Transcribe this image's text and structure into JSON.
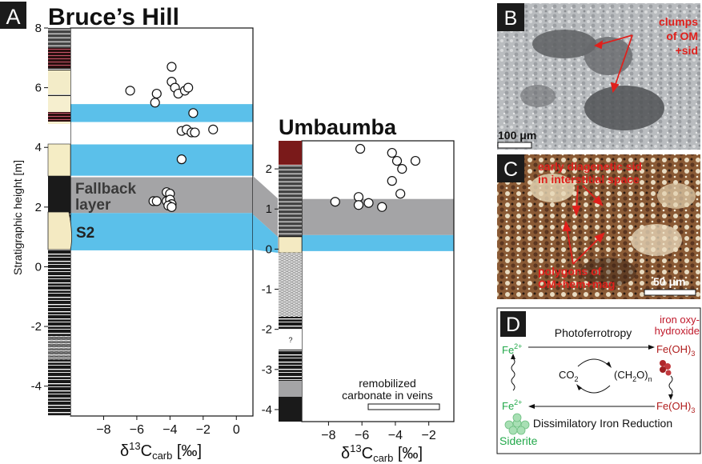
{
  "panels": {
    "A": {
      "letter": "A",
      "bruces_title": "Bruce’s Hill",
      "umbaumba_title": "Umbaumba",
      "ylabel": "Stratigraphic height [m]",
      "xlabel_main": "δ",
      "xlabel_sup": "13",
      "xlabel_c": "C",
      "xlabel_sub": "carb",
      "xlabel_unit": " [‰]",
      "fallback_label_1": "Fallback",
      "fallback_label_2": "layer",
      "s2_label": "S2",
      "question_mark": "?",
      "legend_line1": "remobilized",
      "legend_line2": "carbonate in veins"
    },
    "B": {
      "letter": "B",
      "annotation_1": "clumps",
      "annotation_2": "of OM",
      "annotation_3": "+sid",
      "scale": "100 μm"
    },
    "C": {
      "letter": "C",
      "annotation_top_1": "early diagenetic sid",
      "annotation_top_2": "in interstitial space",
      "annotation_bottom_1": "polygons of",
      "annotation_bottom_2": "OM+hem+mag",
      "scale": "50 μm"
    },
    "D": {
      "letter": "D",
      "top_label": "Photoferrotropy",
      "bottom_label": "Dissimilatory Iron Reduction",
      "fe2_top": "Fe",
      "fe2_top_sup": "2+",
      "fe2_bottom": "Fe",
      "fe2_bottom_sup": "2+",
      "feoh3_top": "Fe(OH)",
      "feoh3_top_sub": "3",
      "feoh3_bottom": "Fe(OH)",
      "feoh3_bottom_sub": "3",
      "co2": "CO",
      "co2_sub": "2",
      "ch2o": "(CH",
      "ch2o_sub1": "2",
      "ch2o_mid": "O)",
      "ch2o_sub2": "n",
      "iron_label_1": "iron oxy-",
      "iron_label_2": "hydroxide",
      "siderite": "Siderite"
    }
  },
  "colors": {
    "blue_band": "#5bc0ea",
    "gray_band": "#a4a4a6",
    "red_text": "#e0201c",
    "green_text": "#22a84a",
    "dark_red": "#b01c1c"
  },
  "chart_data": [
    {
      "type": "scatter",
      "title": "Bruce’s Hill",
      "xlabel": "δ13Ccarb [‰]",
      "ylabel": "Stratigraphic height [m]",
      "xlim": [
        -10,
        1
      ],
      "ylim": [
        -5,
        8
      ],
      "x_ticks": [
        "-8",
        "-6",
        "-4",
        "-2",
        "0"
      ],
      "y_ticks": [
        "8",
        "6",
        "4",
        "2",
        "0",
        "-2",
        "-4"
      ],
      "points": [
        {
          "x": -6.4,
          "y": 5.9
        },
        {
          "x": -4.8,
          "y": 5.8
        },
        {
          "x": -4.9,
          "y": 5.5
        },
        {
          "x": -3.9,
          "y": 6.7
        },
        {
          "x": -3.9,
          "y": 6.2
        },
        {
          "x": -3.7,
          "y": 6.0
        },
        {
          "x": -3.5,
          "y": 5.8
        },
        {
          "x": -3.1,
          "y": 5.9
        },
        {
          "x": -2.9,
          "y": 6.0
        },
        {
          "x": -2.6,
          "y": 5.15
        },
        {
          "x": -3.3,
          "y": 4.55
        },
        {
          "x": -3.0,
          "y": 4.6
        },
        {
          "x": -2.7,
          "y": 4.5
        },
        {
          "x": -2.5,
          "y": 4.5
        },
        {
          "x": -1.4,
          "y": 4.6
        },
        {
          "x": -3.3,
          "y": 3.6
        },
        {
          "x": -5.0,
          "y": 2.2
        },
        {
          "x": -4.8,
          "y": 2.2
        },
        {
          "x": -4.2,
          "y": 2.5
        },
        {
          "x": -4.0,
          "y": 2.45
        },
        {
          "x": -4.2,
          "y": 2.2
        },
        {
          "x": -4.0,
          "y": 2.25
        },
        {
          "x": -3.9,
          "y": 2.1
        },
        {
          "x": -4.1,
          "y": 2.05
        },
        {
          "x": -3.9,
          "y": 2.0
        }
      ],
      "bands": [
        {
          "type": "blue",
          "from": 4.85,
          "to": 5.45
        },
        {
          "type": "blue",
          "from": 3.05,
          "to": 4.1
        },
        {
          "type": "gray",
          "from": 1.8,
          "to": 3.0
        },
        {
          "type": "blue",
          "from": 0.55,
          "to": 1.8
        }
      ]
    },
    {
      "type": "scatter",
      "title": "Umbaumba",
      "xlabel": "δ13Ccarb [‰]",
      "xlim": [
        -9.6,
        -0.5
      ],
      "ylim": [
        -4.3,
        2.7
      ],
      "x_ticks": [
        "-8",
        "-6",
        "-4",
        "-2"
      ],
      "y_ticks": [
        "2",
        "1",
        "0",
        "-1",
        "-2",
        "-3",
        "-4"
      ],
      "points": [
        {
          "x": -7.6,
          "y": 1.18
        },
        {
          "x": -6.2,
          "y": 1.3
        },
        {
          "x": -6.2,
          "y": 1.1
        },
        {
          "x": -5.6,
          "y": 1.15
        },
        {
          "x": -4.8,
          "y": 1.05
        },
        {
          "x": -6.1,
          "y": 2.5
        },
        {
          "x": -4.2,
          "y": 2.4
        },
        {
          "x": -3.9,
          "y": 2.2
        },
        {
          "x": -3.6,
          "y": 2.0
        },
        {
          "x": -2.8,
          "y": 2.2
        },
        {
          "x": -4.2,
          "y": 1.7
        },
        {
          "x": -3.7,
          "y": 1.38
        }
      ],
      "bands": [
        {
          "type": "gray",
          "from": 0.35,
          "to": 1.25
        },
        {
          "type": "blue",
          "from": -0.05,
          "to": 0.35
        }
      ]
    }
  ]
}
